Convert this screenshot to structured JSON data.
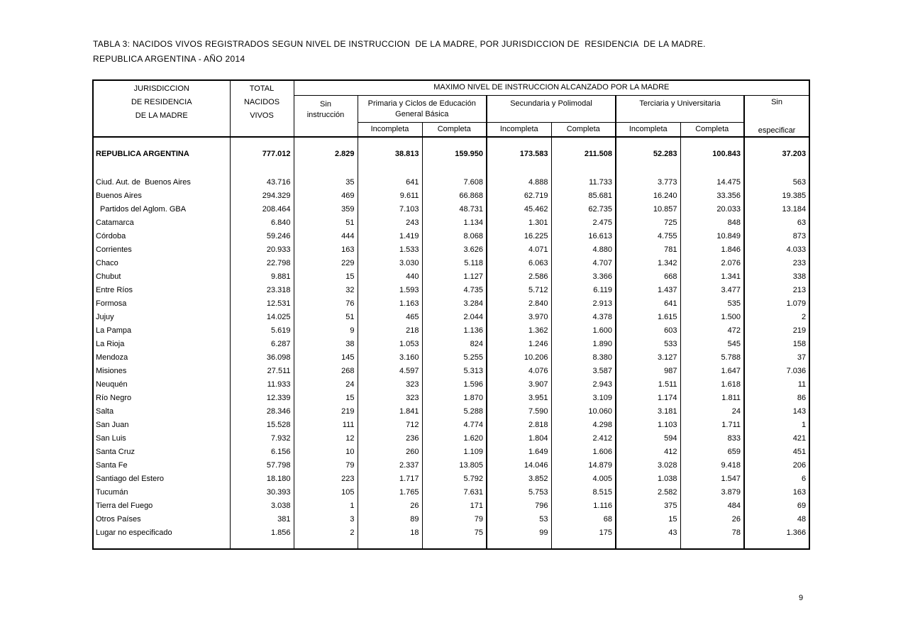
{
  "page": {
    "number": "9"
  },
  "title": {
    "line1": "TABLA 3: NACIDOS VIVOS REGISTRADOS SEGUN NIVEL DE INSTRUCCION  DE LA MADRE, POR JURISDICCION DE  RESIDENCIA  DE LA MADRE.",
    "line2": "REPUBLICA ARGENTINA - AÑO 2014"
  },
  "table": {
    "header": {
      "jurisdiccion": [
        "JURISDICCION",
        "DE RESIDENCIA",
        "DE LA MADRE"
      ],
      "total": [
        "TOTAL",
        "NACIDOS",
        "VIVOS"
      ],
      "maximo": "MAXIMO NIVEL DE INSTRUCCION ALCANZADO POR LA MADRE",
      "sin_instruccion": [
        "Sin",
        "instrucción"
      ],
      "primaria": [
        "Primaria y Ciclos de Educación",
        "General Básica"
      ],
      "secundaria": "Secundaria y Polimodal",
      "terciaria": "Terciaria y Universitaria",
      "sin": "Sin",
      "especificar": "especificar",
      "incompleta": "Incompleta",
      "completa": "Completa"
    },
    "total_row": {
      "label": "REPUBLICA ARGENTINA",
      "values": [
        "777.012",
        "2.829",
        "38.813",
        "159.950",
        "173.583",
        "211.508",
        "52.283",
        "100.843",
        "37.203"
      ]
    },
    "rows": [
      {
        "label": "Ciud. Aut. de  Buenos Aires",
        "indent": false,
        "values": [
          "43.716",
          "35",
          "641",
          "7.608",
          "4.888",
          "11.733",
          "3.773",
          "14.475",
          "563"
        ]
      },
      {
        "label": "Buenos Aires",
        "indent": false,
        "values": [
          "294.329",
          "469",
          "9.611",
          "66.868",
          "62.719",
          "85.681",
          "16.240",
          "33.356",
          "19.385"
        ]
      },
      {
        "label": "Partidos del Aglom. GBA",
        "indent": true,
        "values": [
          "208.464",
          "359",
          "7.103",
          "48.731",
          "45.462",
          "62.735",
          "10.857",
          "20.033",
          "13.184"
        ]
      },
      {
        "label": "Catamarca",
        "indent": false,
        "values": [
          "6.840",
          "51",
          "243",
          "1.134",
          "1.301",
          "2.475",
          "725",
          "848",
          "63"
        ]
      },
      {
        "label": "Córdoba",
        "indent": false,
        "values": [
          "59.246",
          "444",
          "1.419",
          "8.068",
          "16.225",
          "16.613",
          "4.755",
          "10.849",
          "873"
        ]
      },
      {
        "label": "Corrientes",
        "indent": false,
        "values": [
          "20.933",
          "163",
          "1.533",
          "3.626",
          "4.071",
          "4.880",
          "781",
          "1.846",
          "4.033"
        ]
      },
      {
        "label": "Chaco",
        "indent": false,
        "values": [
          "22.798",
          "229",
          "3.030",
          "5.118",
          "6.063",
          "4.707",
          "1.342",
          "2.076",
          "233"
        ]
      },
      {
        "label": "Chubut",
        "indent": false,
        "values": [
          "9.881",
          "15",
          "440",
          "1.127",
          "2.586",
          "3.366",
          "668",
          "1.341",
          "338"
        ]
      },
      {
        "label": "Entre Ríos",
        "indent": false,
        "values": [
          "23.318",
          "32",
          "1.593",
          "4.735",
          "5.712",
          "6.119",
          "1.437",
          "3.477",
          "213"
        ]
      },
      {
        "label": "Formosa",
        "indent": false,
        "values": [
          "12.531",
          "76",
          "1.163",
          "3.284",
          "2.840",
          "2.913",
          "641",
          "535",
          "1.079"
        ]
      },
      {
        "label": "Jujuy",
        "indent": false,
        "values": [
          "14.025",
          "51",
          "465",
          "2.044",
          "3.970",
          "4.378",
          "1.615",
          "1.500",
          "2"
        ]
      },
      {
        "label": "La Pampa",
        "indent": false,
        "values": [
          "5.619",
          "9",
          "218",
          "1.136",
          "1.362",
          "1.600",
          "603",
          "472",
          "219"
        ]
      },
      {
        "label": "La Rioja",
        "indent": false,
        "values": [
          "6.287",
          "38",
          "1.053",
          "824",
          "1.246",
          "1.890",
          "533",
          "545",
          "158"
        ]
      },
      {
        "label": "Mendoza",
        "indent": false,
        "values": [
          "36.098",
          "145",
          "3.160",
          "5.255",
          "10.206",
          "8.380",
          "3.127",
          "5.788",
          "37"
        ]
      },
      {
        "label": "Misiones",
        "indent": false,
        "values": [
          "27.511",
          "268",
          "4.597",
          "5.313",
          "4.076",
          "3.587",
          "987",
          "1.647",
          "7.036"
        ]
      },
      {
        "label": "Neuquén",
        "indent": false,
        "values": [
          "11.933",
          "24",
          "323",
          "1.596",
          "3.907",
          "2.943",
          "1.511",
          "1.618",
          "11"
        ]
      },
      {
        "label": "Río Negro",
        "indent": false,
        "values": [
          "12.339",
          "15",
          "323",
          "1.870",
          "3.951",
          "3.109",
          "1.174",
          "1.811",
          "86"
        ]
      },
      {
        "label": "Salta",
        "indent": false,
        "values": [
          "28.346",
          "219",
          "1.841",
          "5.288",
          "7.590",
          "10.060",
          "3.181",
          "24",
          "143"
        ]
      },
      {
        "label": "San Juan",
        "indent": false,
        "values": [
          "15.528",
          "111",
          "712",
          "4.774",
          "2.818",
          "4.298",
          "1.103",
          "1.711",
          "1"
        ]
      },
      {
        "label": "San Luis",
        "indent": false,
        "values": [
          "7.932",
          "12",
          "236",
          "1.620",
          "1.804",
          "2.412",
          "594",
          "833",
          "421"
        ]
      },
      {
        "label": "Santa Cruz",
        "indent": false,
        "values": [
          "6.156",
          "10",
          "260",
          "1.109",
          "1.649",
          "1.606",
          "412",
          "659",
          "451"
        ]
      },
      {
        "label": "Santa Fe",
        "indent": false,
        "values": [
          "57.798",
          "79",
          "2.337",
          "13.805",
          "14.046",
          "14.879",
          "3.028",
          "9.418",
          "206"
        ]
      },
      {
        "label": "Santiago del Estero",
        "indent": false,
        "values": [
          "18.180",
          "223",
          "1.717",
          "5.792",
          "3.852",
          "4.005",
          "1.038",
          "1.547",
          "6"
        ]
      },
      {
        "label": "Tucumán",
        "indent": false,
        "values": [
          "30.393",
          "105",
          "1.765",
          "7.631",
          "5.753",
          "8.515",
          "2.582",
          "3.879",
          "163"
        ]
      },
      {
        "label": "Tierra del Fuego",
        "indent": false,
        "values": [
          "3.038",
          "1",
          "26",
          "171",
          "796",
          "1.116",
          "375",
          "484",
          "69"
        ]
      },
      {
        "label": "Otros Países",
        "indent": false,
        "values": [
          "381",
          "3",
          "89",
          "79",
          "53",
          "68",
          "15",
          "26",
          "48"
        ]
      },
      {
        "label": "Lugar no especificado",
        "indent": false,
        "values": [
          "1.856",
          "2",
          "18",
          "75",
          "99",
          "175",
          "43",
          "78",
          "1.366"
        ]
      }
    ]
  }
}
